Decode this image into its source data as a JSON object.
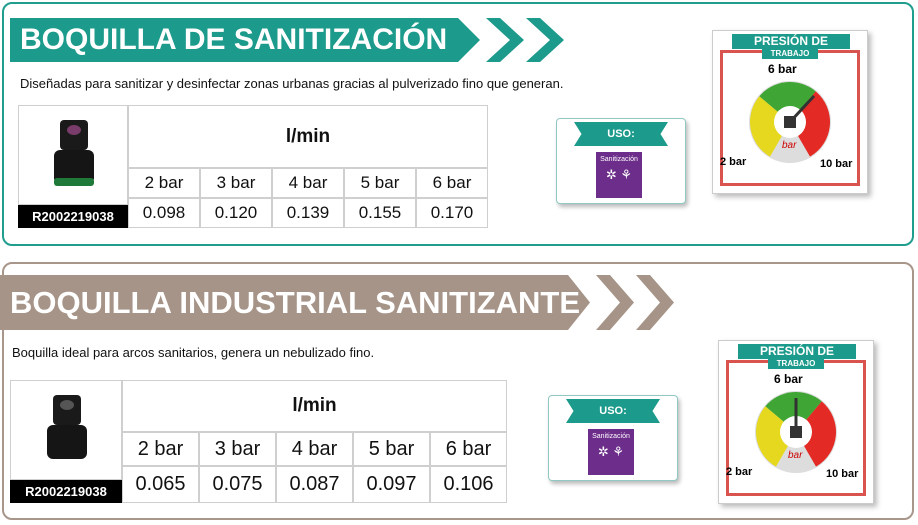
{
  "sections": [
    {
      "title": "BOQUILLA DE SANITIZACIÓN",
      "description": "Diseñadas para sanitizar y desinfectar zonas urbanas  gracias al pulverizado fino que generan.",
      "product_code": "R2002219038",
      "table": {
        "unit": "l/min",
        "pressures": [
          "2 bar",
          "3 bar",
          "4 bar",
          "5 bar",
          "6 bar"
        ],
        "flows": [
          "0.098",
          "0.120",
          "0.139",
          "0.155",
          "0.170"
        ]
      },
      "use": {
        "label": "USO:",
        "item": "Sanitización"
      },
      "gauge": {
        "title": "PRESIÓN DE",
        "subtitle": "TRABAJO",
        "top": "6 bar",
        "left": "2 bar",
        "right": "10 bar",
        "center": "bar"
      }
    },
    {
      "title": "BOQUILLA INDUSTRIAL SANITIZANTE",
      "description": "Boquilla ideal  para arcos sanitarios, genera un nebulizado fino.",
      "product_code": "R2002219038",
      "table": {
        "unit": "l/min",
        "pressures": [
          "2 bar",
          "3 bar",
          "4 bar",
          "5 bar",
          "6 bar"
        ],
        "flows": [
          "0.065",
          "0.075",
          "0.087",
          "0.097",
          "0.106"
        ]
      },
      "use": {
        "label": "USO:",
        "item": "Sanitización"
      },
      "gauge": {
        "title": "PRESIÓN DE",
        "subtitle": "TRABAJO",
        "top": "6 bar",
        "left": "2 bar",
        "right": "10 bar",
        "center": "bar"
      }
    }
  ]
}
